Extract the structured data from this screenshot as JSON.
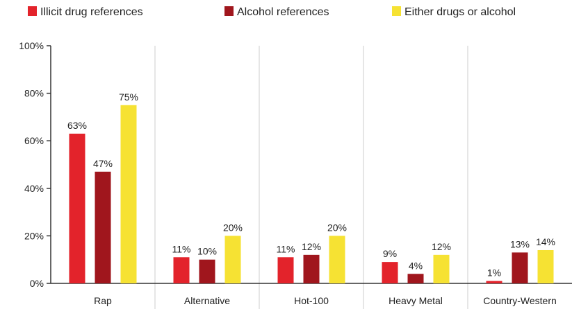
{
  "chart_data": {
    "type": "bar",
    "categories": [
      "Rap",
      "Alternative",
      "Hot-100",
      "Heavy Metal",
      "Country-Western"
    ],
    "series": [
      {
        "name": "Illicit drug references",
        "color": "#e3232b",
        "values": [
          63,
          11,
          11,
          9,
          1
        ],
        "labels": [
          "63%",
          "11%",
          "11%",
          "9%",
          "1%"
        ]
      },
      {
        "name": "Alcohol references",
        "color": "#a0161d",
        "values": [
          47,
          10,
          12,
          4,
          13
        ],
        "labels": [
          "47%",
          "10%",
          "12%",
          "4%",
          "13%"
        ]
      },
      {
        "name": "Either drugs or alcohol",
        "color": "#f6e233",
        "values": [
          75,
          20,
          20,
          12,
          14
        ],
        "labels": [
          "75%",
          "20%",
          "20%",
          "12%",
          "14%"
        ]
      }
    ],
    "yticks": [
      "0%",
      "20%",
      "40%",
      "60%",
      "80%",
      "100%"
    ],
    "ylim": [
      0,
      100
    ],
    "title": "",
    "xlabel": "",
    "ylabel": "",
    "legend_position": "top",
    "grid": false
  }
}
